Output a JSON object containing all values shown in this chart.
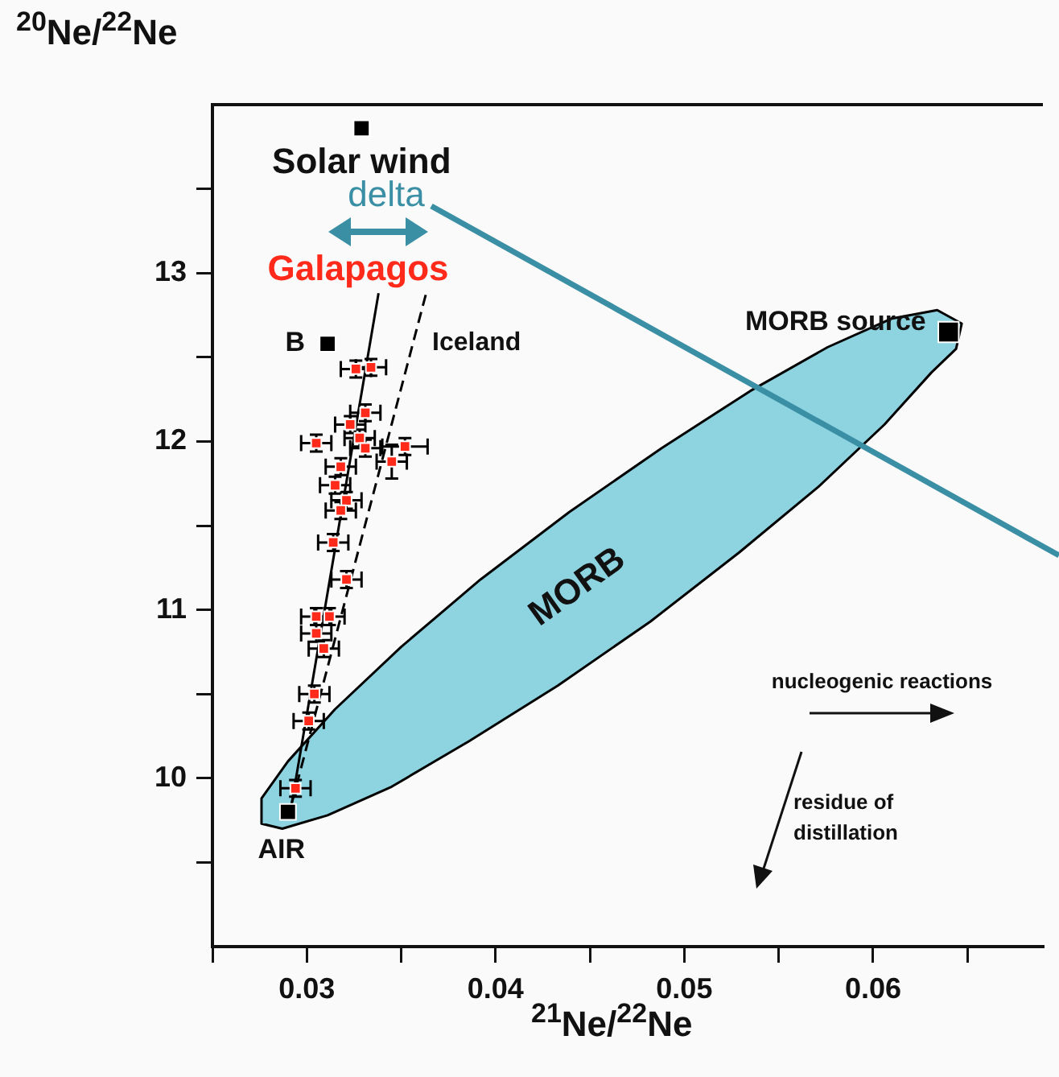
{
  "chart_data": {
    "type": "scatter",
    "xlabel": "$^{21}$Ne/$^{22}$Ne",
    "ylabel": "$^{20}$Ne/$^{22}$Ne",
    "xlim": [
      0.025,
      0.069
    ],
    "ylim": [
      9,
      14
    ],
    "xticks": [
      {
        "value": 0.025,
        "label": null
      },
      0.03,
      {
        "value": 0.035,
        "label": null
      },
      0.04,
      {
        "value": 0.045,
        "label": null
      },
      0.05,
      {
        "value": 0.055,
        "label": null
      },
      0.06,
      {
        "value": 0.065,
        "label": null
      }
    ],
    "yticks": [
      {
        "value": 9.5,
        "label": null
      },
      10,
      {
        "value": 10.5,
        "label": null
      },
      11,
      {
        "value": 11.5,
        "label": null
      },
      12,
      {
        "value": 12.5,
        "label": null
      },
      13,
      {
        "value": 13.5,
        "label": null
      }
    ],
    "grid": false,
    "legend": false,
    "annotations": [
      "delta",
      "nucleogenic reactions",
      "residue of distillation"
    ],
    "series": [
      {
        "type": "area",
        "name": "MORB",
        "color": "#8dd3e0",
        "x": [
          0.0647,
          0.0644,
          0.0631,
          0.0606,
          0.0571,
          0.0529,
          0.0482,
          0.0433,
          0.0386,
          0.0345,
          0.0311,
          0.0287,
          0.0276,
          0.0276,
          0.029,
          0.0315,
          0.035,
          0.0392,
          0.0439,
          0.0488,
          0.0535,
          0.0576,
          0.061,
          0.0634
        ],
        "values": [
          12.7,
          12.55,
          12.41,
          12.1,
          11.73,
          11.34,
          10.93,
          10.55,
          10.22,
          9.95,
          9.78,
          9.7,
          9.73,
          9.88,
          10.1,
          10.41,
          10.78,
          11.18,
          11.58,
          11.96,
          12.3,
          12.56,
          12.73,
          12.78
        ]
      },
      {
        "type": "line",
        "color": "#000000",
        "line_style": "solid",
        "marker": "none",
        "x": [
          0.0338,
          0.0292
        ],
        "values": [
          12.88,
          9.85
        ]
      },
      {
        "type": "line",
        "name": "Iceland",
        "color": "#000000",
        "line_style": "dashed",
        "marker": "none",
        "x": [
          0.0363,
          0.0292
        ],
        "values": [
          12.87,
          9.85
        ]
      },
      {
        "type": "scatter",
        "name": "Galapagos",
        "color": "#ff2a1a",
        "marker": "square",
        "x": [
          0.0334,
          0.0326,
          0.0331,
          0.0323,
          0.0328,
          0.0331,
          0.0305,
          0.0352,
          0.0345,
          0.0318,
          0.0315,
          0.0321,
          0.0318,
          0.0314,
          0.0321,
          0.0305,
          0.0312,
          0.0305,
          0.0309,
          0.0304,
          0.0301,
          0.0294
        ],
        "values": [
          12.44,
          12.43,
          12.17,
          12.1,
          12.02,
          11.96,
          11.99,
          11.97,
          11.88,
          11.85,
          11.74,
          11.65,
          11.59,
          11.4,
          11.18,
          10.96,
          10.96,
          10.86,
          10.77,
          10.5,
          10.34,
          9.94
        ],
        "xerrors": [
          0.0008,
          0.0008,
          0.0008,
          0.0008,
          0.0008,
          0.0008,
          0.0008,
          0.0012,
          0.0008,
          0.0008,
          0.0008,
          0.0008,
          0.0008,
          0.0008,
          0.0008,
          0.0008,
          0.0008,
          0.0008,
          0.0008,
          0.0008,
          0.0008,
          0.0008
        ],
        "errors": [
          0.05,
          0.05,
          0.05,
          0.05,
          0.05,
          0.05,
          0.05,
          0.05,
          0.1,
          0.05,
          0.05,
          0.05,
          0.05,
          0.05,
          0.05,
          0.05,
          0.05,
          0.05,
          0.05,
          0.05,
          0.05,
          0.05
        ]
      },
      {
        "type": "scatter",
        "name": "Solar wind",
        "color": "#000000",
        "marker": "square",
        "x": [
          0.0329
        ],
        "values": [
          13.86
        ]
      },
      {
        "type": "scatter",
        "name": "B",
        "color": "#000000",
        "marker": "square",
        "x": [
          0.0311
        ],
        "values": [
          12.58
        ]
      },
      {
        "type": "scatter",
        "name": "AIR",
        "color": "#000000",
        "marker": "square",
        "x": [
          0.029
        ],
        "values": [
          9.8
        ]
      },
      {
        "type": "scatter",
        "name": "MORB source",
        "color": "#000000",
        "marker": "square",
        "x": [
          0.064
        ],
        "values": [
          12.65
        ]
      }
    ]
  }
}
